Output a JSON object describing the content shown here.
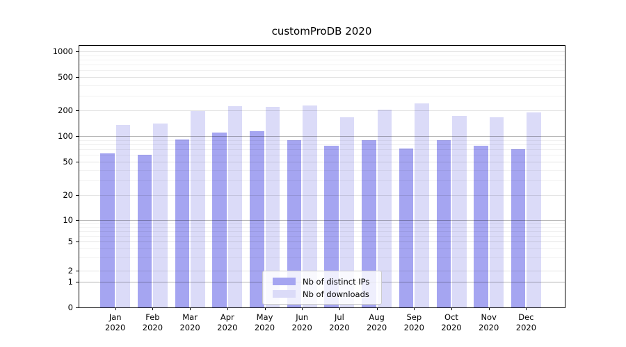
{
  "chart_data": {
    "type": "bar",
    "title": "customProDB 2020",
    "year_label": "2020",
    "categories": [
      "Jan",
      "Feb",
      "Mar",
      "Apr",
      "May",
      "Jun",
      "Jul",
      "Aug",
      "Sep",
      "Oct",
      "Nov",
      "Dec"
    ],
    "series": [
      {
        "name": "Nb of distinct IPs",
        "color": "#a5a5f1",
        "values": [
          63,
          60,
          91,
          111,
          115,
          90,
          77,
          90,
          72,
          89,
          77,
          70
        ]
      },
      {
        "name": "Nb of downloads",
        "color": "#dbdbf8",
        "values": [
          135,
          140,
          199,
          224,
          220,
          232,
          166,
          207,
          241,
          172,
          168,
          190
        ]
      }
    ],
    "y_ticks": [
      1000,
      500,
      200,
      100,
      50,
      20,
      10,
      5,
      2,
      1,
      0
    ],
    "y_minor_ticks": [
      3,
      4,
      6,
      7,
      8,
      9,
      30,
      40,
      60,
      70,
      80,
      90,
      300,
      400,
      600,
      700,
      800,
      900
    ],
    "ylim": [
      0,
      1000
    ],
    "yscale": "log-like",
    "grid": true,
    "legend_position": "bottom-center",
    "colors": {
      "decade_gridline": "#b3b3b3",
      "major_gridline": "#e3e3e3",
      "minor_gridline": "#f0f0f0",
      "axis": "#000000",
      "background": "#ffffff"
    }
  }
}
